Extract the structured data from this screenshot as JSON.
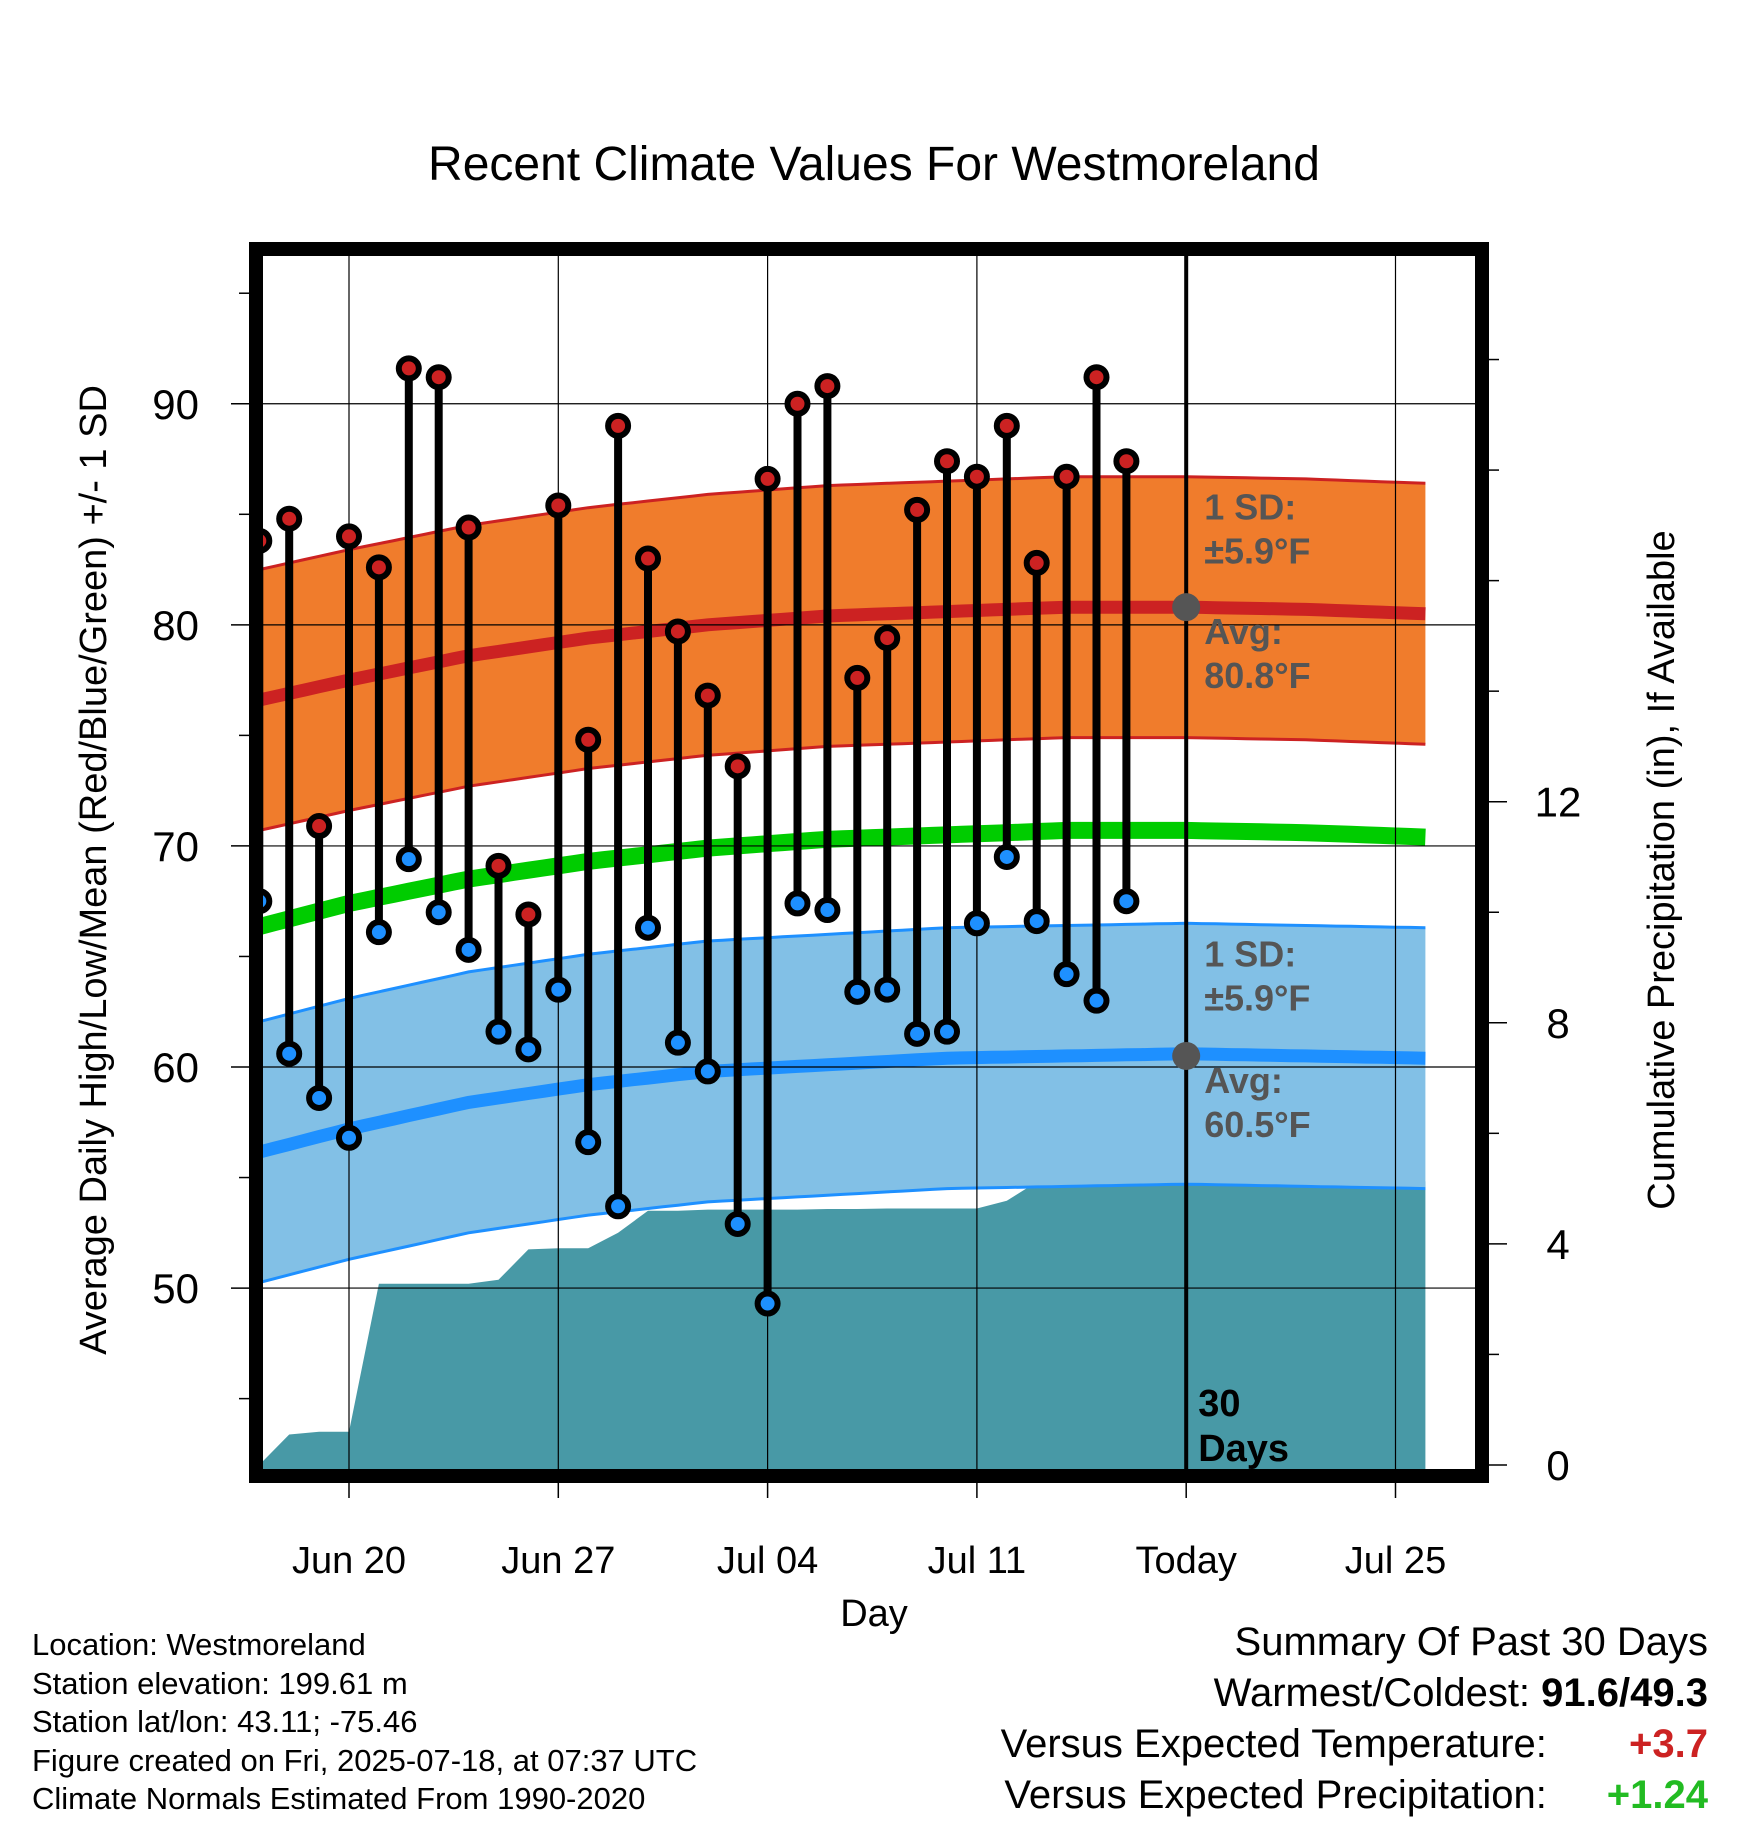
{
  "chart_data": {
    "type": "line",
    "title": "Recent Climate Values For Westmoreland",
    "xlabel": "Day",
    "ylabel": "Average Daily High/Low/Mean (Red/Blue/Green) +/- 1 SD",
    "y2label": "Cumulative Precipitation (in), If Available",
    "x_tick_labels": [
      "Jun 20",
      "Jun 27",
      "Jul 04",
      "Jul 11",
      "Today",
      "Jul 25"
    ],
    "x_tick_days": [
      2,
      9,
      16,
      23,
      30,
      37
    ],
    "y_ticks": [
      50,
      60,
      70,
      80,
      90
    ],
    "y2_ticks": [
      0,
      4,
      8,
      12
    ],
    "ylim": [
      41.5,
      97
    ],
    "y2lim": [
      -0.2,
      22
    ],
    "grid": true,
    "today_day": 30,
    "days_label": "30 Days",
    "colors": {
      "high": "#cc2222",
      "low": "#1e90ff",
      "mean": "#00cc00",
      "high_band": "#f07c2c",
      "low_band": "#82c0e6",
      "precip": "#4899a6",
      "marker_high": "#cc2222",
      "marker_low": "#1e90ff",
      "today_marker": "#555555",
      "annotation": "#555555",
      "positive": "#cc2222",
      "positive_precip": "#22bb22"
    },
    "observed": {
      "days": [
        -1,
        0,
        1,
        2,
        3,
        4,
        5,
        6,
        7,
        8,
        9,
        10,
        11,
        12,
        13,
        14,
        15,
        16,
        17,
        18,
        19,
        20,
        21,
        22,
        23,
        24,
        25,
        26,
        27,
        28,
        29
      ],
      "high": [
        83.8,
        84.8,
        70.9,
        84.0,
        82.6,
        91.6,
        91.2,
        84.4,
        69.1,
        66.9,
        85.4,
        74.8,
        89.0,
        83.0,
        79.7,
        76.8,
        73.6,
        86.6,
        90.0,
        90.8,
        77.6,
        79.4,
        85.2,
        87.4,
        86.7,
        89.0,
        82.8,
        86.7,
        91.2,
        87.4,
        null
      ],
      "low": [
        67.5,
        60.6,
        58.6,
        56.8,
        66.1,
        69.4,
        67.0,
        65.3,
        61.6,
        60.8,
        63.5,
        56.6,
        53.7,
        66.3,
        61.1,
        59.8,
        52.9,
        49.3,
        67.4,
        67.1,
        63.4,
        63.5,
        61.5,
        61.6,
        66.5,
        69.5,
        66.6,
        64.2,
        63.0,
        67.5,
        null
      ]
    },
    "normals": {
      "days": [
        -2,
        2,
        6,
        10,
        14,
        18,
        22,
        26,
        30,
        34,
        38
      ],
      "high_mean": [
        76.3,
        77.5,
        78.6,
        79.4,
        80.0,
        80.4,
        80.6,
        80.8,
        80.8,
        80.7,
        80.5
      ],
      "high_sd": 5.9,
      "low_mean": [
        55.8,
        57.2,
        58.4,
        59.2,
        59.8,
        60.1,
        60.4,
        60.5,
        60.6,
        60.5,
        60.4
      ],
      "low_sd": 5.9,
      "mean": [
        66.0,
        67.4,
        68.5,
        69.3,
        69.9,
        70.3,
        70.5,
        70.7,
        70.7,
        70.6,
        70.4
      ]
    },
    "precip_cumulative": {
      "days": [
        -2,
        -1,
        0,
        1,
        2,
        3,
        4,
        5,
        6,
        7,
        8,
        9,
        10,
        11,
        12,
        13,
        14,
        15,
        16,
        17,
        18,
        19,
        20,
        21,
        22,
        23,
        24,
        25,
        26,
        27,
        28,
        29,
        30,
        38
      ],
      "values": [
        0,
        0,
        0.55,
        0.6,
        0.6,
        3.28,
        3.28,
        3.28,
        3.28,
        3.35,
        3.9,
        3.92,
        3.92,
        4.2,
        4.6,
        4.6,
        4.62,
        4.62,
        4.62,
        4.62,
        4.63,
        4.63,
        4.64,
        4.64,
        4.64,
        4.64,
        4.78,
        5.12,
        5.12,
        5.12,
        5.13,
        5.13,
        5.13,
        5.13
      ]
    },
    "annotations": {
      "high_sd_label": "1 SD:",
      "high_sd_value": "±5.9°F",
      "high_avg_label": "Avg:",
      "high_avg_value": "80.8°F",
      "low_sd_label": "1 SD:",
      "low_sd_value": "±5.9°F",
      "low_avg_label": "Avg:",
      "low_avg_value": "60.5°F",
      "high_avg": 80.8,
      "low_avg": 60.5
    }
  },
  "meta": {
    "location": "Location: Westmoreland",
    "elevation": "Station elevation: 199.61 m",
    "latlon": "Station lat/lon: 43.11; -75.46",
    "created": "Figure created on Fri, 2025-07-18, at 07:37 UTC",
    "normals": "Climate Normals Estimated From 1990-2020"
  },
  "summary": {
    "title": "Summary Of Past 30 Days",
    "warm_cold_label": "Warmest/Coldest:",
    "warm_cold_value": "91.6/49.3",
    "temp_label": "Versus Expected Temperature:",
    "temp_value": "+3.7",
    "precip_label": "Versus Expected Precipitation:",
    "precip_value": "+1.24"
  }
}
